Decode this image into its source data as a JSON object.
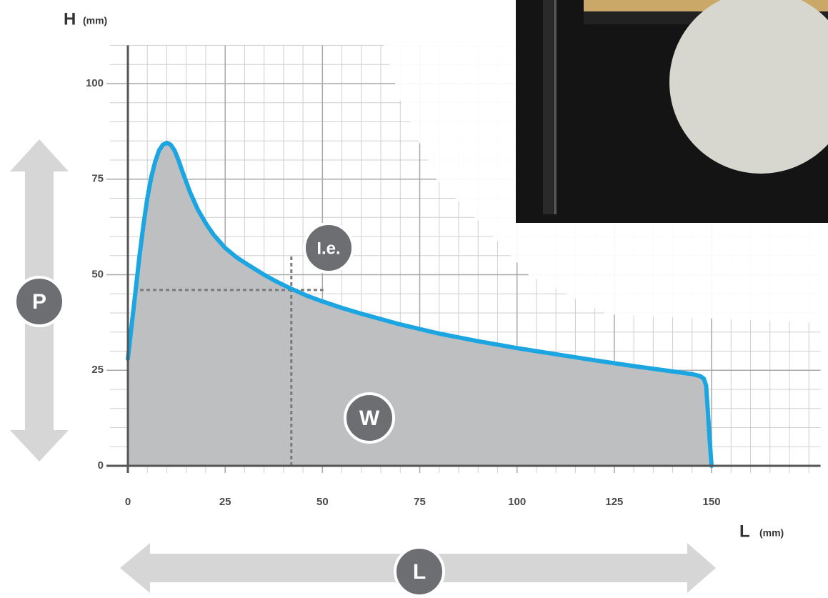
{
  "chart_data": {
    "type": "area",
    "y_axis_title": "H",
    "x_axis_title": "L",
    "y_unit": "(mm)",
    "x_unit": "(mm)",
    "x": [
      0,
      1,
      2,
      3,
      4,
      5,
      6,
      7,
      8,
      9,
      10,
      11,
      12,
      13,
      14,
      16,
      18,
      20,
      22,
      25,
      28,
      31,
      35,
      38,
      42,
      46,
      50,
      55,
      60,
      65,
      70,
      75,
      80,
      90,
      100,
      110,
      120,
      130,
      140,
      145,
      147,
      148,
      148.6,
      149,
      149.5,
      150
    ],
    "values": [
      28,
      37,
      46,
      55,
      63,
      70,
      75.5,
      79.5,
      82.5,
      84,
      84.5,
      84,
      82.5,
      80,
      77,
      71.5,
      67,
      63.5,
      60.5,
      57,
      54.5,
      52.5,
      50,
      48.3,
      46.3,
      44.5,
      43,
      41.3,
      39.8,
      38.4,
      37,
      35.8,
      34.6,
      32.6,
      30.8,
      29.2,
      27.6,
      26.1,
      24.7,
      24,
      23.5,
      22.8,
      21,
      15,
      7,
      0
    ],
    "color": "#1ba6e2",
    "fill": "#bebfc1",
    "xlim": [
      0,
      178
    ],
    "ylim": [
      0,
      110
    ],
    "xticks": [
      0,
      25,
      50,
      75,
      100,
      125,
      150
    ],
    "yticks": [
      0,
      25,
      50,
      75,
      100
    ],
    "minor_step": 5,
    "grid": true,
    "ie_point": {
      "x": 42,
      "y": 46
    },
    "badges": {
      "p": "P",
      "l": "L",
      "w": "W",
      "ie": "I.e."
    }
  }
}
